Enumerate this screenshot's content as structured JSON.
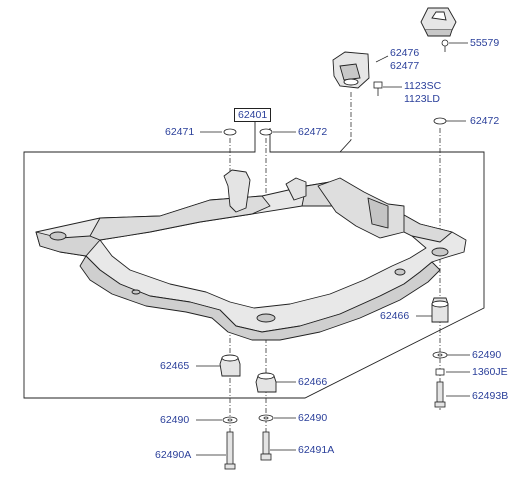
{
  "callouts": {
    "p55579": "55579",
    "p62476": "62476",
    "p62477": "62477",
    "p1123sc": "1123SC",
    "p1123ld": "1123LD",
    "p62401": "62401",
    "p62471": "62471",
    "p62472_top": "62472",
    "p62472_right": "62472",
    "p62466_right": "62466",
    "p62465": "62465",
    "p62466_bottom": "62466",
    "p62490_right": "62490",
    "p1360je": "1360JE",
    "p62493b": "62493B",
    "p62490_left": "62490",
    "p62490_mid": "62490",
    "p62490a": "62490A",
    "p62491a": "62491A"
  },
  "colors": {
    "callout_text": "#2a3f9a",
    "line": "#222222",
    "part_fill": "#e6e6e6",
    "part_shade": "#c8c8c8"
  }
}
